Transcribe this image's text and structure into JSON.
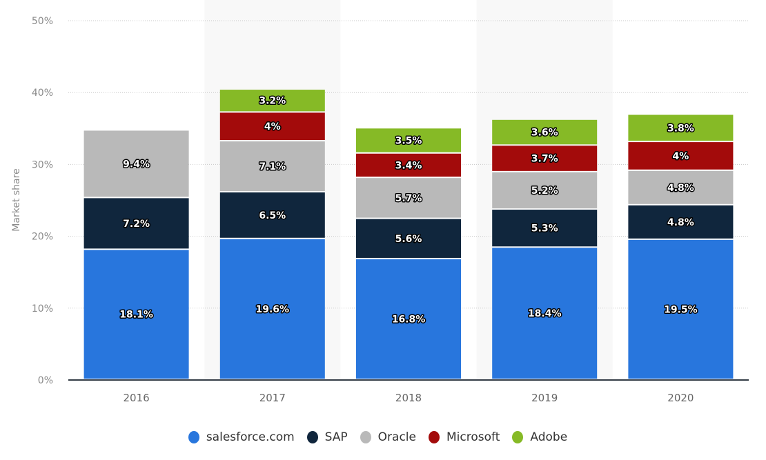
{
  "chart_data": {
    "type": "bar",
    "stacked": true,
    "title": "",
    "xlabel": "",
    "ylabel": "Market share",
    "ylim": [
      0,
      50
    ],
    "yticks": [
      0,
      10,
      20,
      30,
      40,
      50
    ],
    "ytick_labels": [
      "0%",
      "10%",
      "20%",
      "30%",
      "40%",
      "50%"
    ],
    "grid": true,
    "legend_position": "bottom",
    "categories": [
      "2016",
      "2017",
      "2018",
      "2019",
      "2020"
    ],
    "series": [
      {
        "name": "salesforce.com",
        "color": "#2876DD",
        "values": [
          18.1,
          19.6,
          16.8,
          18.4,
          19.5
        ],
        "labels": [
          "18.1%",
          "19.6%",
          "16.8%",
          "18.4%",
          "19.5%"
        ]
      },
      {
        "name": "SAP",
        "color": "#10263D",
        "values": [
          7.2,
          6.5,
          5.6,
          5.3,
          4.8
        ],
        "labels": [
          "7.2%",
          "6.5%",
          "5.6%",
          "5.3%",
          "4.8%"
        ]
      },
      {
        "name": "Oracle",
        "color": "#B9B9B9",
        "values": [
          9.4,
          7.1,
          5.7,
          5.2,
          4.8
        ],
        "labels": [
          "9.4%",
          "7.1%",
          "5.7%",
          "5.2%",
          "4.8%"
        ]
      },
      {
        "name": "Microsoft",
        "color": "#A30B0B",
        "values": [
          null,
          4,
          3.4,
          3.7,
          4
        ],
        "labels": [
          null,
          "4%",
          "3.4%",
          "3.7%",
          "4%"
        ]
      },
      {
        "name": "Adobe",
        "color": "#86BA26",
        "values": [
          null,
          3.2,
          3.5,
          3.6,
          3.8
        ],
        "labels": [
          null,
          "3.2%",
          "3.5%",
          "3.6%",
          "3.8%"
        ]
      }
    ]
  },
  "legend": {
    "items": [
      {
        "label": "salesforce.com",
        "color": "#2876DD"
      },
      {
        "label": "SAP",
        "color": "#10263D"
      },
      {
        "label": "Oracle",
        "color": "#B9B9B9"
      },
      {
        "label": "Microsoft",
        "color": "#A30B0B"
      },
      {
        "label": "Adobe",
        "color": "#86BA26"
      }
    ]
  }
}
